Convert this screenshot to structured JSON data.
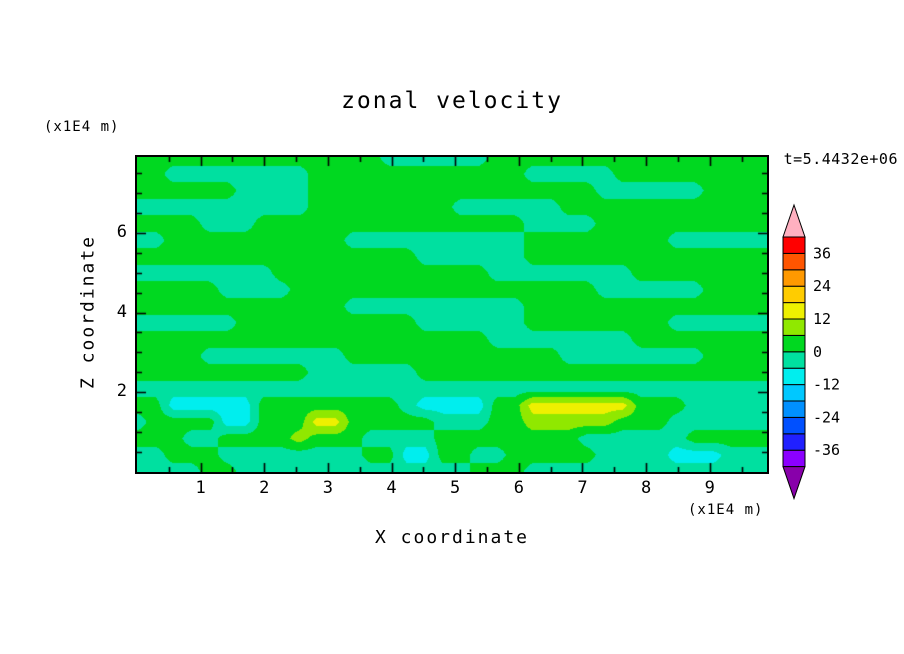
{
  "chart_data": {
    "type": "heatmap",
    "title": "zonal velocity",
    "time_annotation": "t=5.4432e+06",
    "xlabel": "X coordinate",
    "x_unit": "(x1E4 m)",
    "ylabel": "Z coordinate",
    "y_unit": "(x1E4 m)",
    "x_range": [
      0,
      9.9
    ],
    "z_range": [
      0,
      7.9
    ],
    "x_major_ticks": [
      1,
      2,
      3,
      4,
      5,
      6,
      7,
      8,
      9
    ],
    "z_major_ticks": [
      2,
      4,
      6
    ],
    "minor_tick_step": 0.5,
    "contour_levels": [
      -42,
      -36,
      -30,
      -24,
      -18,
      -12,
      -6,
      0,
      6,
      12,
      18,
      24,
      30,
      36,
      42
    ],
    "level_colors_low_to_high": [
      "#8b00ff",
      "#2020ff",
      "#0050ff",
      "#0090ff",
      "#00c8ff",
      "#00eeee",
      "#00e0a0",
      "#00d820",
      "#90e800",
      "#eef000",
      "#ffcc00",
      "#ff9900",
      "#ff5500",
      "#ff0000"
    ],
    "below_range_color": "#8800aa",
    "above_range_color": "#ffb0c0",
    "colorbar_tick_labels": [
      36,
      24,
      12,
      0,
      -12,
      -24,
      -36
    ],
    "field_grid_rle_rows_top_to_bottom": [
      [
        [
          3,
          14
        ],
        [
          -3,
          6
        ],
        [
          3,
          16
        ]
      ],
      [
        [
          3,
          2
        ],
        [
          -3,
          8
        ],
        [
          3,
          12
        ],
        [
          -3,
          5
        ],
        [
          3,
          9
        ]
      ],
      [
        [
          3,
          6
        ],
        [
          -3,
          4
        ],
        [
          3,
          16
        ],
        [
          -3,
          6
        ],
        [
          3,
          4
        ]
      ],
      [
        [
          -3,
          10
        ],
        [
          3,
          8
        ],
        [
          -3,
          6
        ],
        [
          3,
          12
        ]
      ],
      [
        [
          3,
          4
        ],
        [
          -3,
          3
        ],
        [
          3,
          15
        ],
        [
          -3,
          4
        ],
        [
          3,
          10
        ]
      ],
      [
        [
          -3,
          2
        ],
        [
          3,
          10
        ],
        [
          -3,
          10
        ],
        [
          3,
          8
        ],
        [
          -3,
          6
        ]
      ],
      [
        [
          3,
          16
        ],
        [
          -3,
          6
        ],
        [
          3,
          14
        ]
      ],
      [
        [
          -3,
          8
        ],
        [
          3,
          12
        ],
        [
          -3,
          8
        ],
        [
          3,
          8
        ]
      ],
      [
        [
          3,
          5
        ],
        [
          -3,
          4
        ],
        [
          3,
          17
        ],
        [
          -3,
          6
        ],
        [
          3,
          4
        ]
      ],
      [
        [
          3,
          12
        ],
        [
          -3,
          10
        ],
        [
          3,
          14
        ]
      ],
      [
        [
          -3,
          6
        ],
        [
          3,
          10
        ],
        [
          -3,
          6
        ],
        [
          3,
          8
        ],
        [
          -3,
          6
        ]
      ],
      [
        [
          3,
          20
        ],
        [
          -3,
          8
        ],
        [
          3,
          8
        ]
      ],
      [
        [
          3,
          4
        ],
        [
          -3,
          8
        ],
        [
          3,
          12
        ],
        [
          -3,
          8
        ],
        [
          3,
          4
        ]
      ],
      [
        [
          3,
          10
        ],
        [
          -3,
          6
        ],
        [
          3,
          20
        ]
      ],
      [
        [
          -3,
          36
        ]
      ],
      [
        [
          3,
          2
        ],
        [
          -9,
          5
        ],
        [
          3,
          8
        ],
        [
          -3,
          1
        ],
        [
          -9,
          4
        ],
        [
          3,
          2
        ],
        [
          15,
          6
        ],
        [
          3,
          3
        ],
        [
          -3,
          5
        ]
      ],
      [
        [
          -3,
          1
        ],
        [
          3,
          4
        ],
        [
          -9,
          2
        ],
        [
          3,
          3
        ],
        [
          15,
          2
        ],
        [
          3,
          5
        ],
        [
          -3,
          3
        ],
        [
          3,
          2
        ],
        [
          9,
          5
        ],
        [
          3,
          3
        ],
        [
          -3,
          6
        ]
      ],
      [
        [
          3,
          3
        ],
        [
          -3,
          2
        ],
        [
          3,
          4
        ],
        [
          9,
          1
        ],
        [
          3,
          3
        ],
        [
          -3,
          4
        ],
        [
          3,
          8
        ],
        [
          -3,
          6
        ],
        [
          3,
          5
        ]
      ],
      [
        [
          -3,
          2
        ],
        [
          3,
          3
        ],
        [
          -3,
          8
        ],
        [
          3,
          2
        ],
        [
          -9,
          2
        ],
        [
          3,
          2
        ],
        [
          -3,
          2
        ],
        [
          3,
          5
        ],
        [
          -3,
          4
        ],
        [
          -9,
          3
        ],
        [
          -3,
          3
        ]
      ],
      [
        [
          -3,
          4
        ],
        [
          3,
          2
        ],
        [
          -3,
          13
        ],
        [
          3,
          3
        ],
        [
          -3,
          14
        ]
      ]
    ]
  }
}
